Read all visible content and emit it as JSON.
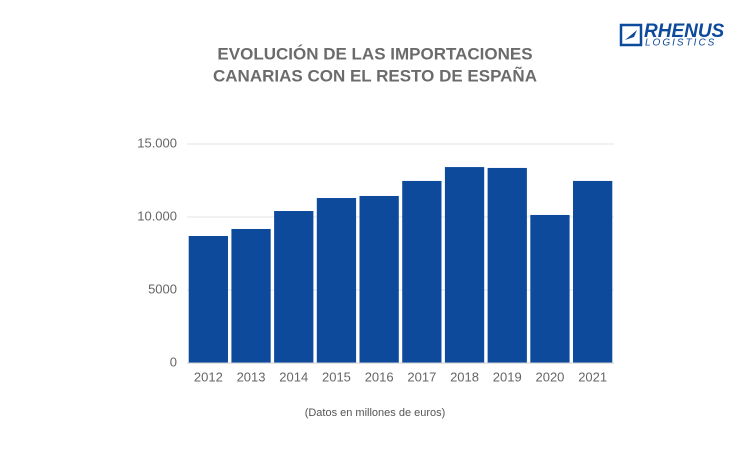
{
  "logo": {
    "name": "RHENUS",
    "subtitle": "LOGISTICS"
  },
  "chart_data": {
    "type": "bar",
    "title": [
      "EVOLUCIÓN DE LAS IMPORTACIONES",
      "CANARIAS CON EL RESTO DE ESPAÑA"
    ],
    "x_label": "(Datos en millones de euros)",
    "categories": [
      "2012",
      "2013",
      "2014",
      "2015",
      "2016",
      "2017",
      "2018",
      "2019",
      "2020",
      "2021"
    ],
    "values": [
      8700,
      9180,
      10410,
      11300,
      11440,
      12470,
      13420,
      13360,
      10140,
      12470
    ],
    "color": "#0d4a9b",
    "ylim": [
      0,
      15000
    ],
    "yticks": [
      0,
      5000,
      {
        "value": 10000,
        "label": "10.000"
      },
      {
        "value": 15000,
        "label": "15.000"
      }
    ],
    "grid": true
  }
}
